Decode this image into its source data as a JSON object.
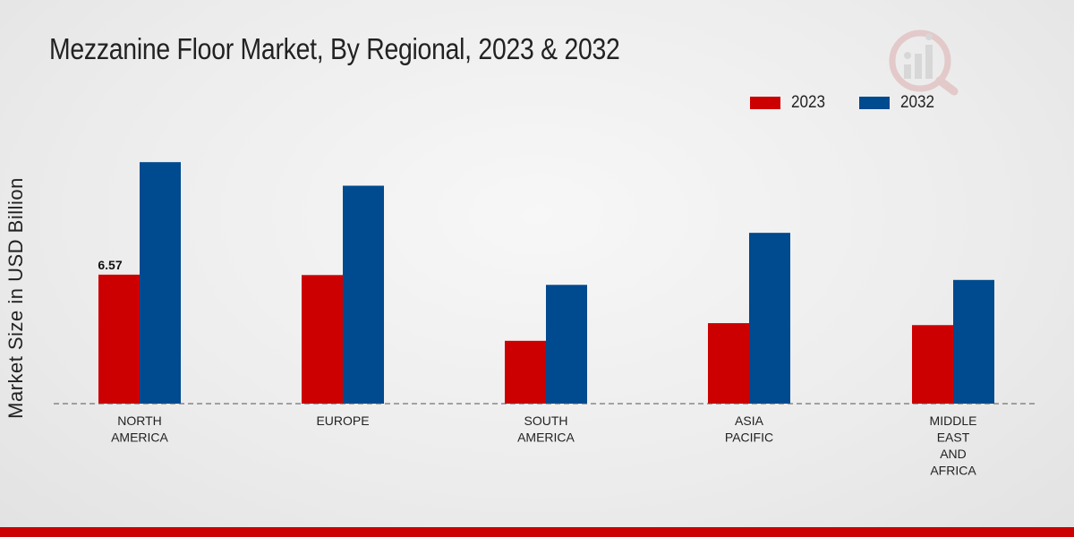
{
  "chart_data": {
    "type": "bar",
    "title": "Mezzanine Floor Market, By Regional, 2023 & 2032",
    "xlabel": "",
    "ylabel": "Market Size in USD Billion",
    "categories": [
      [
        "NORTH",
        "AMERICA"
      ],
      [
        "EUROPE"
      ],
      [
        "SOUTH",
        "AMERICA"
      ],
      [
        "ASIA",
        "PACIFIC"
      ],
      [
        "MIDDLE",
        "EAST",
        "AND",
        "AFRICA"
      ]
    ],
    "series": [
      {
        "name": "2023",
        "color": "#cc0000",
        "values": [
          6.57,
          6.55,
          3.2,
          4.1,
          4.0
        ]
      },
      {
        "name": "2032",
        "color": "#004a8f",
        "values": [
          12.3,
          11.1,
          6.05,
          8.7,
          6.3
        ]
      }
    ],
    "data_labels": [
      {
        "series": 0,
        "index": 0,
        "text": "6.57"
      }
    ],
    "ylim": [
      0,
      16
    ],
    "grid": false,
    "legend_position": "top-right"
  },
  "colors": {
    "accent": "#cc0000",
    "secondary": "#004a8f"
  },
  "logo": {
    "icon": "analytics-magnifier-icon"
  }
}
